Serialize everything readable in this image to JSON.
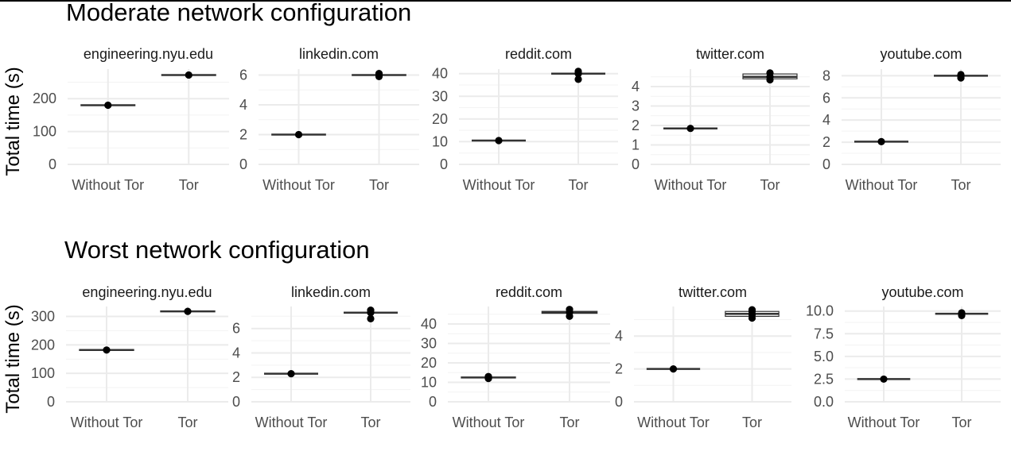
{
  "chart_data": [
    {
      "type": "boxplot",
      "title": "Moderate network configuration",
      "ylabel": "Total time (s)",
      "categories": [
        "Without Tor",
        "Tor"
      ],
      "facets": [
        {
          "name": "engineering.nyu.edu",
          "ylim": [
            0,
            290
          ],
          "yticks": [
            0,
            100,
            200
          ],
          "groups": [
            {
              "median": 180,
              "q1": 180,
              "q3": 180,
              "points": [
                180
              ]
            },
            {
              "median": 272,
              "q1": 272,
              "q3": 272,
              "points": [
                272
              ]
            }
          ]
        },
        {
          "name": "linkedin.com",
          "ylim": [
            0,
            6.4
          ],
          "yticks": [
            0,
            2,
            4,
            6
          ],
          "groups": [
            {
              "median": 2.0,
              "q1": 2.0,
              "q3": 2.0,
              "points": [
                2.0
              ]
            },
            {
              "median": 6.0,
              "q1": 6.0,
              "q3": 6.0,
              "points": [
                5.9,
                6.0,
                6.1
              ]
            }
          ]
        },
        {
          "name": "reddit.com",
          "ylim": [
            0,
            42
          ],
          "yticks": [
            0,
            10,
            20,
            30,
            40
          ],
          "groups": [
            {
              "median": 10.5,
              "q1": 10.5,
              "q3": 10.5,
              "points": [
                10.5
              ]
            },
            {
              "median": 40,
              "q1": 40,
              "q3": 40,
              "points": [
                37.5,
                40,
                41
              ]
            }
          ]
        },
        {
          "name": "twitter.com",
          "ylim": [
            0,
            4.9
          ],
          "yticks": [
            0,
            1,
            2,
            3,
            4
          ],
          "groups": [
            {
              "median": 1.85,
              "q1": 1.82,
              "q3": 1.87,
              "points": [
                1.85
              ]
            },
            {
              "median": 4.5,
              "q1": 4.4,
              "q3": 4.65,
              "points": [
                4.35,
                4.5,
                4.7
              ]
            }
          ]
        },
        {
          "name": "youtube.com",
          "ylim": [
            0,
            8.6
          ],
          "yticks": [
            0,
            2,
            4,
            6,
            8
          ],
          "groups": [
            {
              "median": 2.05,
              "q1": 2.05,
              "q3": 2.05,
              "points": [
                2.05
              ]
            },
            {
              "median": 8.0,
              "q1": 8.0,
              "q3": 8.05,
              "points": [
                7.8,
                8.0,
                8.1
              ]
            }
          ]
        }
      ]
    },
    {
      "type": "boxplot",
      "title": "Worst network configuration",
      "ylabel": "Total time (s)",
      "categories": [
        "Without Tor",
        "Tor"
      ],
      "facets": [
        {
          "name": "engineering.nyu.edu",
          "ylim": [
            0,
            335
          ],
          "yticks": [
            0,
            100,
            200,
            300
          ],
          "groups": [
            {
              "median": 182,
              "q1": 182,
              "q3": 182,
              "points": [
                182
              ]
            },
            {
              "median": 318,
              "q1": 318,
              "q3": 318,
              "points": [
                318
              ]
            }
          ]
        },
        {
          "name": "linkedin.com",
          "ylim": [
            0,
            7.8
          ],
          "yticks": [
            0,
            2,
            4,
            6
          ],
          "groups": [
            {
              "median": 2.3,
              "q1": 2.3,
              "q3": 2.3,
              "points": [
                2.3
              ]
            },
            {
              "median": 7.3,
              "q1": 7.3,
              "q3": 7.3,
              "points": [
                6.8,
                7.3,
                7.5
              ]
            }
          ]
        },
        {
          "name": "reddit.com",
          "ylim": [
            0,
            49
          ],
          "yticks": [
            0,
            10,
            20,
            30,
            40
          ],
          "groups": [
            {
              "median": 12.5,
              "q1": 12.4,
              "q3": 12.6,
              "points": [
                12.0,
                12.5,
                13.0
              ]
            },
            {
              "median": 46,
              "q1": 45.5,
              "q3": 46.5,
              "points": [
                44,
                46,
                47.5
              ]
            }
          ]
        },
        {
          "name": "twitter.com",
          "ylim": [
            0,
            5.8
          ],
          "yticks": [
            0,
            2,
            4
          ],
          "groups": [
            {
              "median": 2.0,
              "q1": 2.0,
              "q3": 2.0,
              "points": [
                2.0
              ]
            },
            {
              "median": 5.35,
              "q1": 5.2,
              "q3": 5.5,
              "points": [
                5.1,
                5.3,
                5.5,
                5.6
              ]
            }
          ]
        },
        {
          "name": "youtube.com",
          "ylim": [
            0,
            10.5
          ],
          "yticks": [
            0.0,
            2.5,
            5.0,
            7.5,
            10.0
          ],
          "tickLabels": [
            "0.0",
            "2.5",
            "5.0",
            "7.5",
            "10.0"
          ],
          "groups": [
            {
              "median": 2.5,
              "q1": 2.5,
              "q3": 2.5,
              "points": [
                2.5
              ]
            },
            {
              "median": 9.7,
              "q1": 9.7,
              "q3": 9.7,
              "points": [
                9.5,
                9.7,
                9.8
              ]
            }
          ]
        }
      ]
    }
  ]
}
